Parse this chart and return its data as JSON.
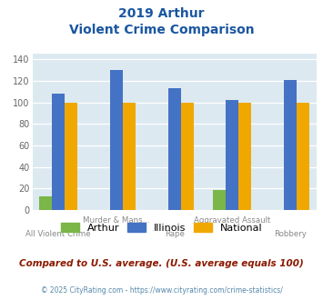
{
  "title_line1": "2019 Arthur",
  "title_line2": "Violent Crime Comparison",
  "categories": [
    "All Violent Crime",
    "Murder & Mans...",
    "Rape",
    "Aggravated Assault",
    "Robbery"
  ],
  "arthur_values": [
    13,
    0,
    0,
    19,
    0
  ],
  "illinois_values": [
    108,
    130,
    113,
    102,
    121
  ],
  "national_values": [
    100,
    100,
    100,
    100,
    100
  ],
  "arthur_color": "#7ab648",
  "illinois_color": "#4472c4",
  "national_color": "#f0a800",
  "background_color": "#dce9f0",
  "ylim": [
    0,
    145
  ],
  "yticks": [
    0,
    20,
    40,
    60,
    80,
    100,
    120,
    140
  ],
  "title_color": "#1a56a0",
  "footer_color": "#8b1a00",
  "copyright_color": "#5588aa",
  "bar_width": 0.22,
  "group_positions": [
    0,
    1,
    2,
    3,
    4
  ],
  "footer_text": "Compared to U.S. average. (U.S. average equals 100)",
  "copyright_text": "© 2025 CityRating.com - https://www.cityrating.com/crime-statistics/"
}
